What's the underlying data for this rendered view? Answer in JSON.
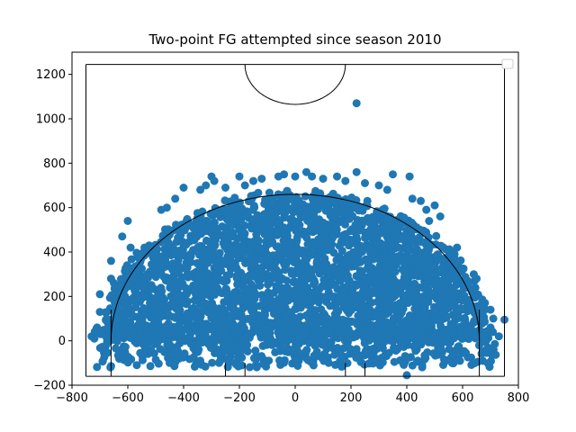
{
  "chart_data": {
    "type": "scatter",
    "title": "Two-point FG attempted since season 2010",
    "xlabel": "",
    "ylabel": "",
    "xlim": [
      -800,
      800
    ],
    "ylim": [
      -200,
      1300
    ],
    "xticks": [
      -800,
      -600,
      -400,
      -200,
      0,
      200,
      400,
      600,
      800
    ],
    "yticks": [
      -200,
      0,
      200,
      400,
      600,
      800,
      1000,
      1200
    ],
    "grid": false,
    "legend": "top-right (empty)",
    "marker_color": "#1f77b4",
    "series": [
      {
        "description_points": "sampled representative shot locations",
        "x": [
          220,
          400,
          -300,
          -290,
          220,
          350,
          410,
          -150,
          -200,
          150,
          -400,
          500,
          480,
          -600,
          -620,
          -660,
          -700,
          -720,
          680,
          700,
          710,
          750,
          -540,
          -560,
          560,
          600,
          -460,
          450,
          520,
          -120,
          100,
          40,
          -40,
          0,
          300,
          -320,
          250,
          -250,
          -700,
          690,
          -650,
          640,
          620,
          -610,
          330,
          -340,
          60,
          -60,
          180,
          -180,
          420,
          -430,
          470,
          -480,
          580,
          -590,
          650,
          -660,
          700,
          -710,
          730,
          -730
        ],
        "y": [
          1070,
          -155,
          740,
          720,
          760,
          750,
          740,
          720,
          740,
          740,
          690,
          610,
          540,
          540,
          470,
          360,
          210,
          10,
          170,
          140,
          100,
          95,
          420,
          380,
          400,
          320,
          600,
          630,
          560,
          730,
          730,
          760,
          750,
          740,
          700,
          700,
          710,
          690,
          130,
          40,
          260,
          300,
          250,
          200,
          680,
          680,
          740,
          740,
          720,
          700,
          640,
          640,
          590,
          590,
          420,
          420,
          280,
          280,
          60,
          60,
          20,
          20
        ]
      }
    ],
    "court_lines": {
      "outer_box": {
        "x": [
          -750,
          750
        ],
        "y": [
          -160,
          1245
        ]
      },
      "three_point_arc_radius": 660,
      "three_point_corner_x": 660,
      "key_outer_x": [
        -250,
        250
      ],
      "key_inner_x": [
        -180,
        180
      ],
      "top_circle_radius": 180,
      "top_circle_center_y": 1245
    }
  }
}
